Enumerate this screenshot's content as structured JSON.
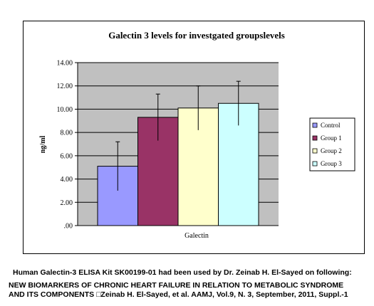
{
  "chart_data": {
    "type": "bar",
    "title": "Galectin 3 levels for investgated groupslevels",
    "xlabel": "Galectin",
    "ylabel": "ng/ml",
    "categories": [
      "Galectin"
    ],
    "ylim": [
      0,
      14
    ],
    "yticks": [
      0,
      2,
      4,
      6,
      8,
      10,
      12,
      14
    ],
    "ytick_labels": [
      ".00",
      "2.00",
      "4.00",
      "6.00",
      "8.00",
      "10.00",
      "12.00",
      "14.00"
    ],
    "grid": "horizontal",
    "legend_position": "right",
    "series": [
      {
        "name": "Control",
        "values": [
          5.1
        ],
        "error": [
          2.1
        ],
        "color": "#9999ff"
      },
      {
        "name": "Group 1",
        "values": [
          9.3
        ],
        "error": [
          2.0
        ],
        "color": "#993366"
      },
      {
        "name": "Group 2",
        "values": [
          10.1
        ],
        "error": [
          1.9
        ],
        "color": "#ffffcc"
      },
      {
        "name": "Group 3",
        "values": [
          10.5
        ],
        "error": [
          1.9
        ],
        "color": "#ccffff"
      }
    ],
    "colors": {
      "plot_background": "#c0c0c0",
      "gridline": "#000000"
    }
  },
  "caption": {
    "line1": "Human Galectin-3 ELISA Kit SK00199-01 had been used by  Dr. Zeinab H. El-Sayed on following:",
    "line2": "NEW BIOMARKERS OF CHRONIC HEART FAILURE IN RELATION TO METABOLIC SYNDROME",
    "line3": "AND ITS COMPONENTS □Zeinab H. El-Sayed, et al. AAMJ, Vol.9, N. 3, September, 2011, Suppl.-1"
  }
}
